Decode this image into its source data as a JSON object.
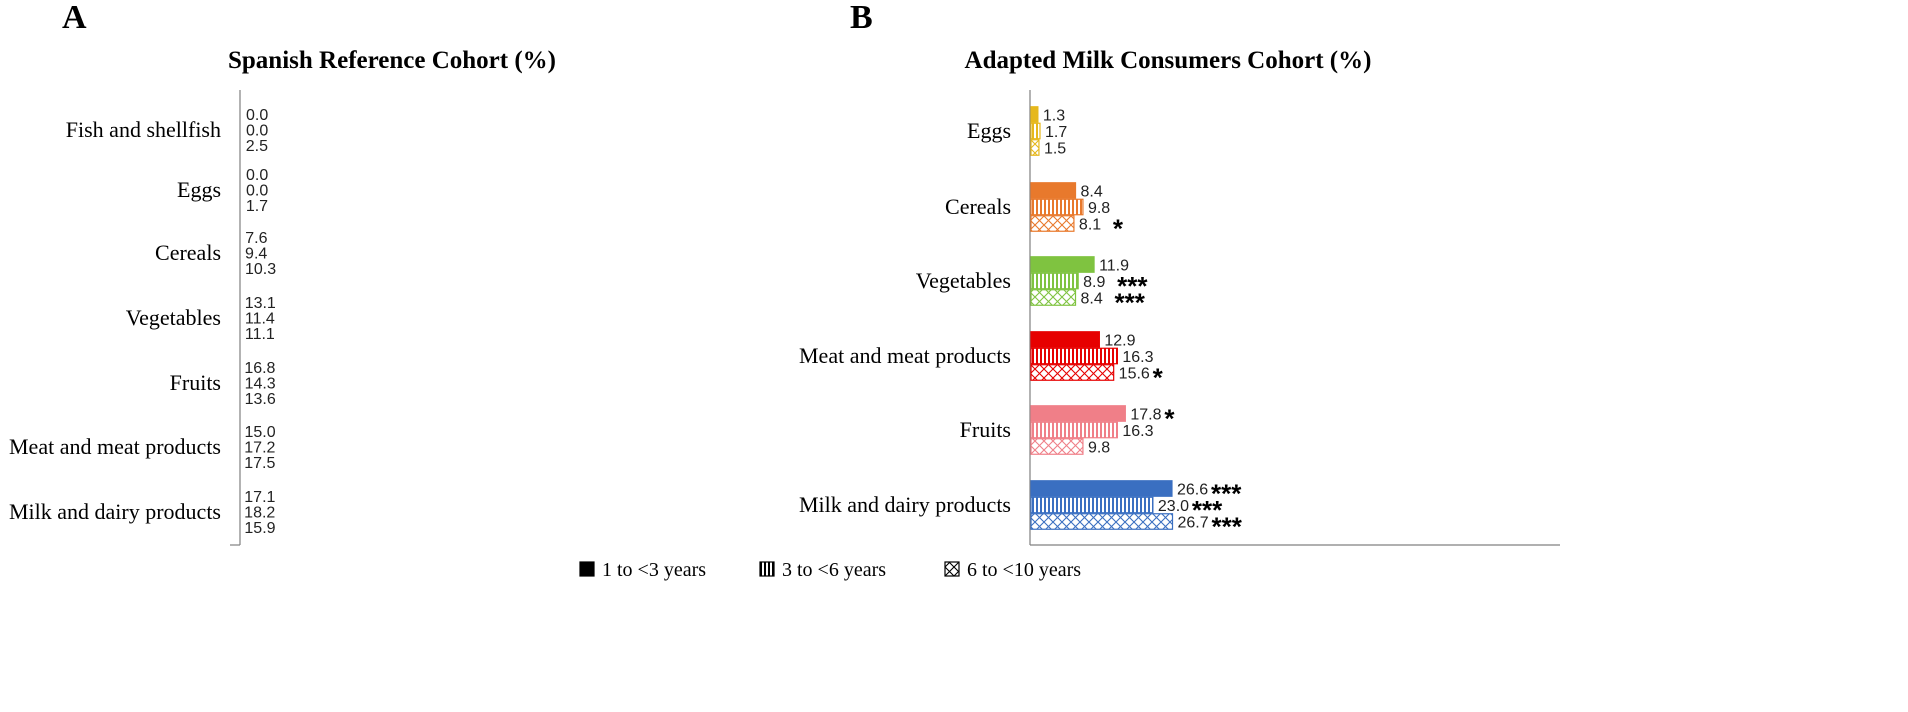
{
  "colors": {
    "Fish and shellfish": "#a6a6a6",
    "Eggs": "#e6b81c",
    "Cereals": "#e8792c",
    "Vegetables": "#7fc340",
    "Fruits": "#f07f88",
    "Meat and meat products": "#e60000",
    "Milk and dairy products": "#3a6fc1"
  },
  "legend": [
    {
      "label": "1 to <3 years",
      "pattern": "solid"
    },
    {
      "label": "3 to <6 years",
      "pattern": "vertical"
    },
    {
      "label": "6 to <10 years",
      "pattern": "crosshatch"
    }
  ],
  "chart_data": [
    {
      "type": "bar",
      "orientation": "horizontal",
      "panel": "A",
      "title": "Spanish Reference Cohort (%)",
      "categories": [
        "Fish and shellfish",
        "Eggs",
        "Cereals",
        "Vegetables",
        "Fruits",
        "Meat and meat products",
        "Milk and dairy products"
      ],
      "series": [
        {
          "name": "1 to <3 years",
          "values": [
            0.0,
            0.0,
            7.6,
            13.1,
            16.8,
            15.0,
            17.1
          ],
          "labels": [
            "0.0",
            "0.0",
            "7.6",
            "13.1",
            "16.8",
            "15.0",
            "17.1"
          ],
          "sig": [
            "",
            "",
            "",
            "",
            "",
            "",
            ""
          ]
        },
        {
          "name": "3 to <6 years",
          "values": [
            0.0,
            0.0,
            9.4,
            11.4,
            14.3,
            17.2,
            18.2
          ],
          "labels": [
            "0.0",
            "0.0",
            "9.4",
            "11.4",
            "14.3",
            "17.2",
            "18.2"
          ],
          "sig": [
            "",
            "",
            "",
            "",
            "",
            "",
            ""
          ]
        },
        {
          "name": "6 to <10 years",
          "values": [
            2.5,
            1.7,
            10.3,
            11.1,
            13.6,
            17.5,
            15.9
          ],
          "labels": [
            "2.5",
            "1.7",
            "10.3",
            "11.1",
            "13.6",
            "17.5",
            "15.9"
          ],
          "sig": [
            "",
            "",
            "",
            "",
            "",
            "",
            ""
          ]
        }
      ],
      "xlim": [
        0,
        100
      ]
    },
    {
      "type": "bar",
      "orientation": "horizontal",
      "panel": "B",
      "title": "Adapted Milk Consumers Cohort (%)",
      "categories": [
        "Eggs",
        "Cereals",
        "Vegetables",
        "Meat and meat products",
        "Fruits",
        "Milk and dairy products"
      ],
      "series": [
        {
          "name": "1 to <3 years",
          "values": [
            1.3,
            8.4,
            11.9,
            12.9,
            17.8,
            26.6
          ],
          "labels": [
            "1.3",
            "8.4",
            "11.9",
            "12.9",
            "17.8",
            "26.6"
          ],
          "sig": [
            "",
            "",
            "",
            "",
            "*",
            "***"
          ]
        },
        {
          "name": "3 to <6 years",
          "values": [
            1.7,
            9.8,
            8.9,
            16.3,
            16.3,
            23.0
          ],
          "labels": [
            "1.7",
            "9.8",
            "8.9",
            "16.3",
            "16.3",
            "23.0"
          ],
          "sig": [
            "",
            "",
            "***",
            "",
            "",
            "***"
          ]
        },
        {
          "name": "6 to <10 years",
          "values": [
            1.5,
            8.1,
            8.4,
            15.6,
            9.8,
            26.7
          ],
          "labels": [
            "1.5",
            "8.1",
            "8.4",
            "15.6",
            "9.8",
            "26.7"
          ],
          "sig": [
            "",
            "*",
            "***",
            "*",
            "",
            "***"
          ]
        }
      ],
      "xlim": [
        0,
        100
      ]
    }
  ]
}
